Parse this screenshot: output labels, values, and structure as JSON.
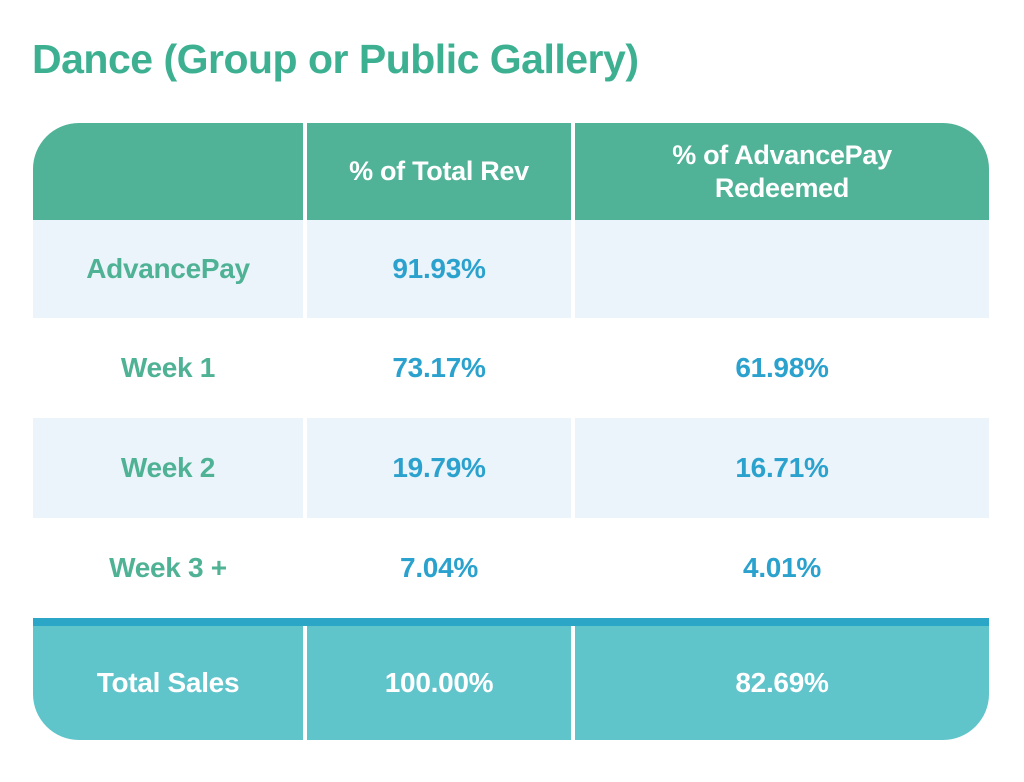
{
  "title": "Dance (Group or Public Gallery)",
  "colors": {
    "title_green": "#3db092",
    "header_green": "#50b296",
    "row_alt_blue": "#ebf3fb",
    "row_white": "#ffffff",
    "label_green": "#4fb295",
    "value_blue": "#2ba2cd",
    "footer_teal": "#60c4cb",
    "footer_stripe": "#2ca6c6",
    "divider": "#ffffff",
    "header_text": "#ffffff",
    "footer_text": "#ffffff"
  },
  "table": {
    "columns": [
      "",
      "% of Total Rev",
      "% of AdvancePay Redeemed"
    ],
    "rows": [
      {
        "label": "AdvancePay",
        "total_rev": "91.93%",
        "advancepay_redeemed": ""
      },
      {
        "label": "Week 1",
        "total_rev": "73.17%",
        "advancepay_redeemed": "61.98%"
      },
      {
        "label": "Week 2",
        "total_rev": "19.79%",
        "advancepay_redeemed": "16.71%"
      },
      {
        "label": "Week 3 +",
        "total_rev": "7.04%",
        "advancepay_redeemed": "4.01%"
      }
    ],
    "footer": {
      "label": "Total Sales",
      "total_rev": "100.00%",
      "advancepay_redeemed": "82.69%"
    }
  },
  "chart_data": {
    "type": "table",
    "title": "Dance (Group or Public Gallery)",
    "columns": [
      "",
      "% of Total Rev",
      "% of AdvancePay Redeemed"
    ],
    "rows": [
      [
        "AdvancePay",
        91.93,
        null
      ],
      [
        "Week 1",
        73.17,
        61.98
      ],
      [
        "Week 2",
        19.79,
        16.71
      ],
      [
        "Week 3 +",
        7.04,
        4.01
      ],
      [
        "Total Sales",
        100.0,
        82.69
      ]
    ],
    "units": "percent"
  }
}
